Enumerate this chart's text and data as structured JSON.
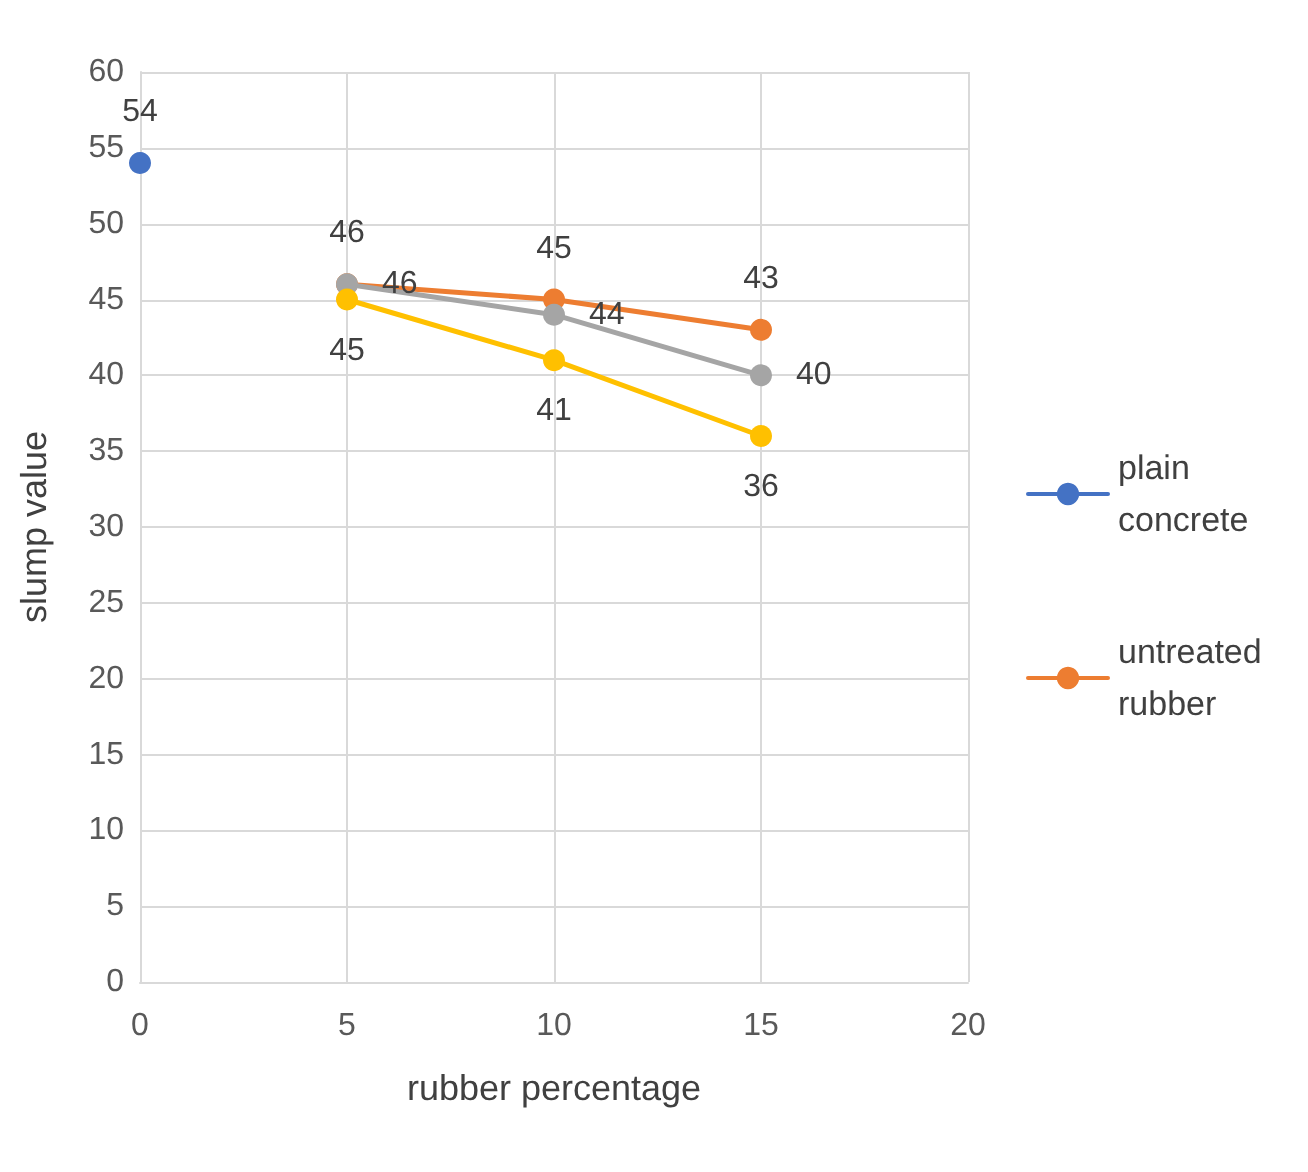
{
  "chart_data": {
    "type": "line",
    "xlabel": "rubber percentage",
    "ylabel": "slump value",
    "xlim": [
      0,
      20
    ],
    "xticks": [
      0,
      5,
      10,
      15,
      20
    ],
    "ylim": [
      0,
      60
    ],
    "yticks": [
      0,
      5,
      10,
      15,
      20,
      25,
      30,
      35,
      40,
      45,
      50,
      55,
      60
    ],
    "grid": true,
    "legend": "right",
    "marker": "circle",
    "data_labels": true,
    "series": [
      {
        "name": "plain concrete",
        "color": "#4472c4",
        "x": [
          0
        ],
        "values": [
          54
        ]
      },
      {
        "name": "untreated rubber",
        "color": "#ed7d31",
        "x": [
          5,
          10,
          15
        ],
        "values": [
          46,
          45,
          43
        ]
      },
      {
        "color": "#a5a5a5",
        "x": [
          5,
          10,
          15
        ],
        "values": [
          46,
          44,
          40
        ]
      },
      {
        "color": "#ffc000",
        "x": [
          5,
          10,
          15
        ],
        "values": [
          45,
          41,
          36
        ]
      }
    ]
  }
}
